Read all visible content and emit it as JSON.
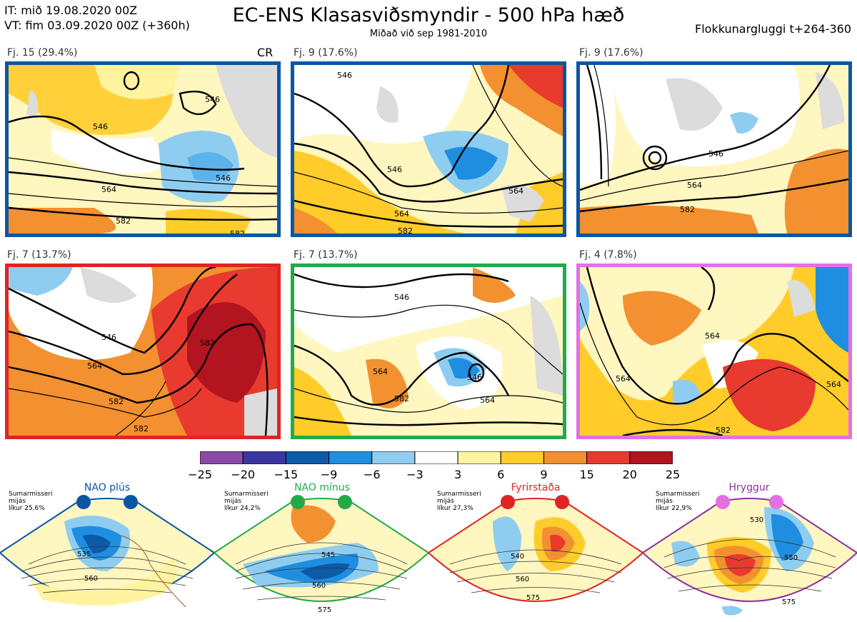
{
  "header": {
    "line1": "IT: mið 19.08.2020 00Z",
    "line2": "VT: fim 03.09.2020 00Z  (+360h)",
    "title": "EC-ENS Klasasviðsmyndir - 500 hPa hæð",
    "subtitle": "Miðað við sep 1981-2010",
    "right": "Flokkunargluggi t+264-360"
  },
  "panels": [
    {
      "label": "Fj. 15 (29.4%)",
      "extra": "CR",
      "border": "#0a56a3",
      "contours": [
        "546",
        "546",
        "546",
        "564",
        "582",
        "582"
      ]
    },
    {
      "label": "Fj. 9 (17.6%)",
      "extra": "",
      "border": "#0a56a3",
      "contours": [
        "546",
        "546",
        "564",
        "564",
        "582"
      ]
    },
    {
      "label": "Fj. 9 (17.6%)",
      "extra": "",
      "border": "#0a56a3",
      "contours": [
        "546",
        "564",
        "582"
      ]
    },
    {
      "label": "Fj. 7 (13.7%)",
      "extra": "",
      "border": "#e02424",
      "contours": [
        "546",
        "564",
        "582",
        "582",
        "582"
      ]
    },
    {
      "label": "Fj. 7 (13.7%)",
      "extra": "",
      "border": "#22aa4a",
      "contours": [
        "546",
        "546",
        "564",
        "564",
        "582"
      ]
    },
    {
      "label": "Fj. 4 (7.8%)",
      "extra": "",
      "border": "#e46fe4",
      "contours": [
        "564",
        "564",
        "564",
        "582"
      ]
    }
  ],
  "colorbar": {
    "ticks": [
      "−25",
      "−20",
      "−15",
      "−9",
      "−6",
      "−3",
      "3",
      "6",
      "9",
      "15",
      "20",
      "25"
    ],
    "colors": [
      "#8a4aa8",
      "#3a36a0",
      "#0d5aa8",
      "#1f8ee0",
      "#8fcdf0",
      "#ffffff",
      "#fff3a0",
      "#ffcc2a",
      "#f39030",
      "#e83a2e",
      "#b21420"
    ]
  },
  "regimes": [
    {
      "title": "NAO plús",
      "info": [
        "Sumarmisseri",
        "mijás",
        "líkur 25,6%"
      ],
      "color": "#0a56a3",
      "labels": [
        "535",
        "560"
      ]
    },
    {
      "title": "NAO mínus",
      "info": [
        "Sumarmisseri",
        "mijás",
        "líkur 24,2%"
      ],
      "color": "#22aa4a",
      "labels": [
        "545",
        "560",
        "575"
      ]
    },
    {
      "title": "Fyrirstaða",
      "info": [
        "Sumarmisseri",
        "mijás",
        "líkur 27,3%"
      ],
      "color": "#e02424",
      "labels": [
        "540",
        "560",
        "575"
      ]
    },
    {
      "title": "Hryggur",
      "info": [
        "Sumarmisseri",
        "mijás",
        "líkur 22,9%"
      ],
      "color": "#e46fe4",
      "labels": [
        "530",
        "550",
        "575"
      ]
    }
  ]
}
